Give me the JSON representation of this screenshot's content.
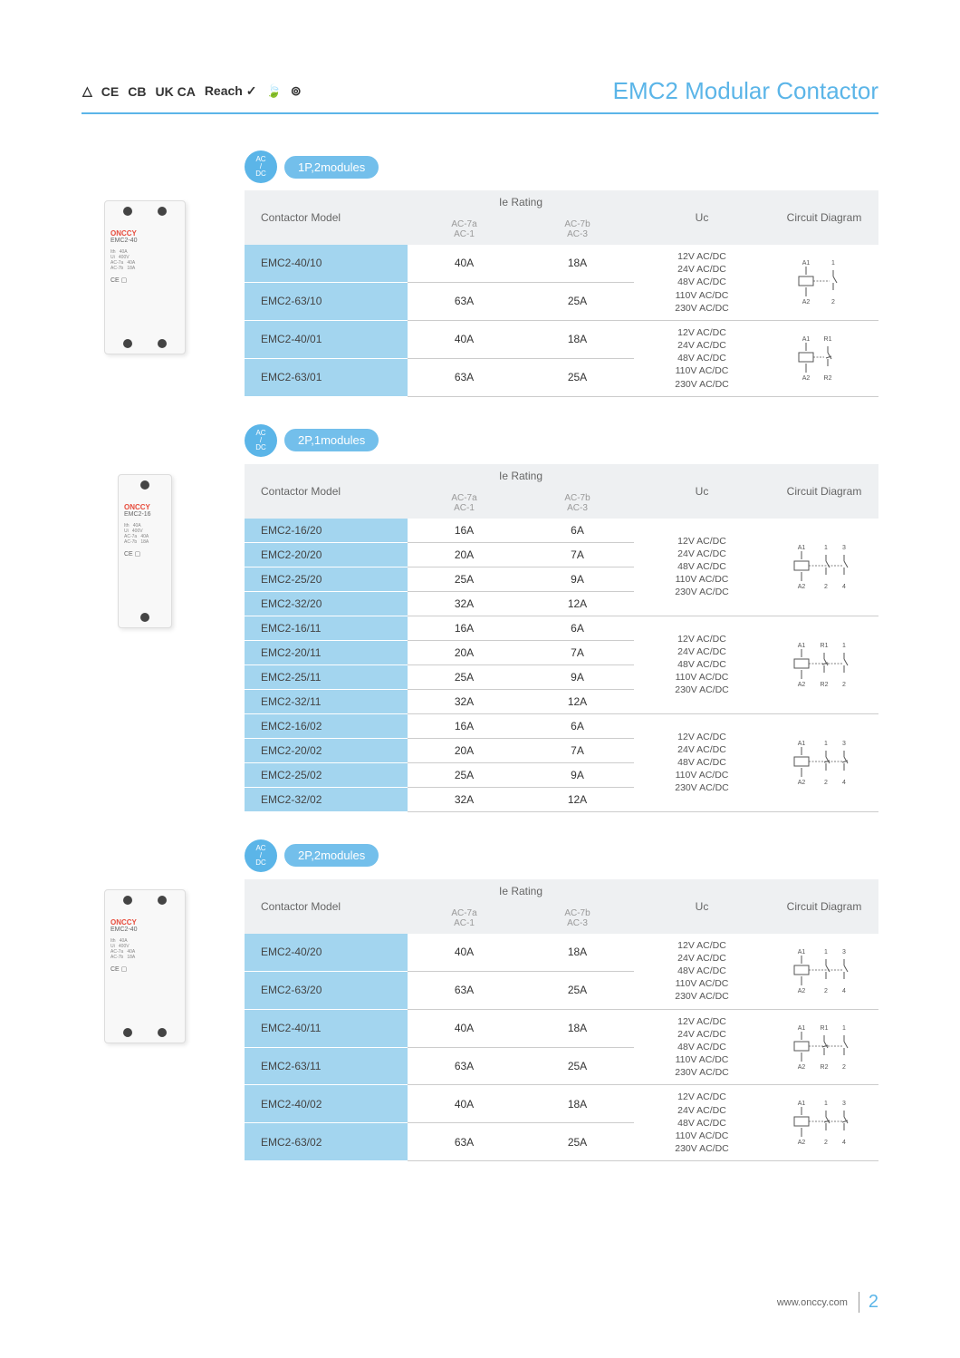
{
  "title": "EMC2 Modular Contactor",
  "certifications": [
    "△",
    "CE",
    "CB",
    "UK CA",
    "Reach ✓",
    "🍃",
    "⊚"
  ],
  "colors": {
    "accent": "#5bb5e8",
    "row_bg": "#a3d5ef",
    "header_bg": "#eef0f2"
  },
  "footer": {
    "url": "www.onccy.com",
    "page": "2"
  },
  "uc_options": [
    "12V  AC/DC",
    "24V  AC/DC",
    "48V  AC/DC",
    "110V AC/DC",
    "230V AC/DC"
  ],
  "table_headers": {
    "model": "Contactor Model",
    "ie": "Ie Rating",
    "ie_sub1a": "AC-7a",
    "ie_sub1b": "AC-1",
    "ie_sub2a": "AC-7b",
    "ie_sub2b": "AC-3",
    "uc": "Uc",
    "diagram": "Circuit Diagram"
  },
  "sections": [
    {
      "pill": "1P,2modules",
      "acdc": "AC / DC",
      "product": {
        "brand": "ONCCY",
        "model": "EMC2-40"
      },
      "groups": [
        {
          "diagram": "1no",
          "rows": [
            {
              "model": "EMC2-40/10",
              "a": "40A",
              "b": "18A"
            },
            {
              "model": "EMC2-63/10",
              "a": "63A",
              "b": "25A"
            }
          ]
        },
        {
          "diagram": "1nc",
          "rows": [
            {
              "model": "EMC2-40/01",
              "a": "40A",
              "b": "18A"
            },
            {
              "model": "EMC2-63/01",
              "a": "63A",
              "b": "25A"
            }
          ]
        }
      ]
    },
    {
      "pill": "2P,1modules",
      "acdc": "AC / DC",
      "product": {
        "brand": "ONCCY",
        "model": "EMC2-16",
        "small": true
      },
      "groups": [
        {
          "diagram": "2no",
          "rows": [
            {
              "model": "EMC2-16/20",
              "a": "16A",
              "b": "6A"
            },
            {
              "model": "EMC2-20/20",
              "a": "20A",
              "b": "7A"
            },
            {
              "model": "EMC2-25/20",
              "a": "25A",
              "b": "9A"
            },
            {
              "model": "EMC2-32/20",
              "a": "32A",
              "b": "12A"
            }
          ]
        },
        {
          "diagram": "1no1nc",
          "rows": [
            {
              "model": "EMC2-16/11",
              "a": "16A",
              "b": "6A"
            },
            {
              "model": "EMC2-20/11",
              "a": "20A",
              "b": "7A"
            },
            {
              "model": "EMC2-25/11",
              "a": "25A",
              "b": "9A"
            },
            {
              "model": "EMC2-32/11",
              "a": "32A",
              "b": "12A"
            }
          ]
        },
        {
          "diagram": "2nc",
          "rows": [
            {
              "model": "EMC2-16/02",
              "a": "16A",
              "b": "6A"
            },
            {
              "model": "EMC2-20/02",
              "a": "20A",
              "b": "7A"
            },
            {
              "model": "EMC2-25/02",
              "a": "25A",
              "b": "9A"
            },
            {
              "model": "EMC2-32/02",
              "a": "32A",
              "b": "12A"
            }
          ]
        }
      ]
    },
    {
      "pill": "2P,2modules",
      "acdc": "AC / DC",
      "product": {
        "brand": "ONCCY",
        "model": "EMC2-40"
      },
      "groups": [
        {
          "diagram": "2no",
          "rows": [
            {
              "model": "EMC2-40/20",
              "a": "40A",
              "b": "18A"
            },
            {
              "model": "EMC2-63/20",
              "a": "63A",
              "b": "25A"
            }
          ]
        },
        {
          "diagram": "1no1nc",
          "rows": [
            {
              "model": "EMC2-40/11",
              "a": "40A",
              "b": "18A"
            },
            {
              "model": "EMC2-63/11",
              "a": "63A",
              "b": "25A"
            }
          ]
        },
        {
          "diagram": "2nc",
          "rows": [
            {
              "model": "EMC2-40/02",
              "a": "40A",
              "b": "18A"
            },
            {
              "model": "EMC2-63/02",
              "a": "63A",
              "b": "25A"
            }
          ]
        }
      ]
    }
  ],
  "diagrams": {
    "labels": {
      "a1": "A1",
      "a2": "A2",
      "r1": "R1",
      "r2": "R2",
      "t1": "1",
      "t2": "2",
      "t3": "3",
      "t4": "4"
    }
  }
}
